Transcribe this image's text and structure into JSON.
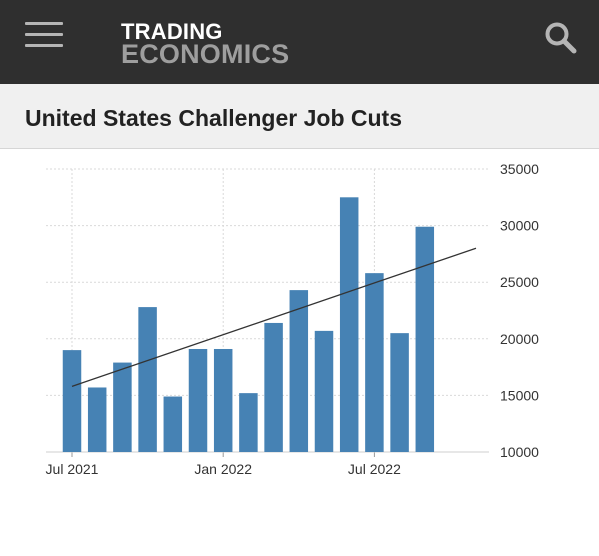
{
  "header": {
    "brand_line1": "TRADING",
    "brand_line2": "ECONOMICS",
    "menu_icon": "hamburger-menu-icon",
    "search_icon": "search-icon",
    "background_color": "#2f2f2f"
  },
  "page": {
    "title": "United States Challenger Job Cuts"
  },
  "chart_data": {
    "type": "bar",
    "title": "",
    "xlabel": "",
    "ylabel": "",
    "x": [
      "2021-07",
      "2021-08",
      "2021-09",
      "2021-10",
      "2021-11",
      "2021-12",
      "2022-01",
      "2022-02",
      "2022-03",
      "2022-04",
      "2022-05",
      "2022-06",
      "2022-07",
      "2022-08",
      "2022-09"
    ],
    "values": [
      19000,
      15700,
      17900,
      22800,
      14900,
      19100,
      19100,
      15200,
      21400,
      24300,
      20700,
      32500,
      25800,
      20500,
      29900
    ],
    "ylim": [
      10000,
      35000
    ],
    "y_ticks": [
      "35000",
      "30000",
      "25000",
      "20000",
      "15000",
      "10000"
    ],
    "x_tick_labels": [
      {
        "label": "Jul 2021",
        "at": "2021-07"
      },
      {
        "label": "Jan 2022",
        "at": "2022-01"
      },
      {
        "label": "Jul 2022",
        "at": "2022-07"
      }
    ],
    "trend_line": {
      "start": 15800,
      "end": 28000
    },
    "y_axis_position": "right",
    "grid": true,
    "bar_color": "#4682b4",
    "trend_color": "#333333"
  }
}
